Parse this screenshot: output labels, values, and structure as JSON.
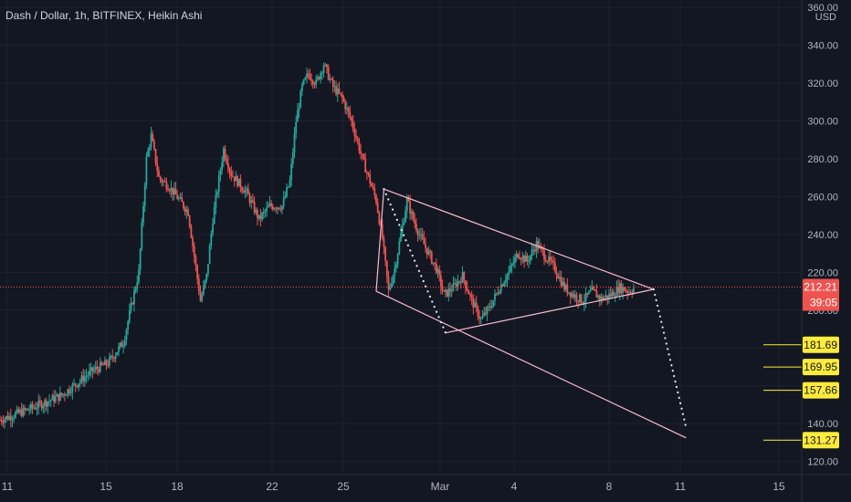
{
  "header": {
    "title": "Dash / Dollar, 1h, BITFINEX, Heikin Ashi"
  },
  "currency_label": "USD",
  "colors": {
    "background": "#131722",
    "grid": "#1e222d",
    "text": "#b2b5be",
    "up": "#26a69a",
    "down": "#ef5350",
    "pattern_line": "#f8bbd0",
    "projection": "#e0e3eb",
    "target_line": "#ffeb3b",
    "target_label_bg": "#ffeb3b",
    "price_label_bg": "#ef5350"
  },
  "chart_data": {
    "type": "candlestick",
    "title": "Dash / Dollar, 1h, BITFINEX, Heikin Ashi",
    "y_ticks": [
      "120.00",
      "140.00",
      "160.00",
      "180.00",
      "200.00",
      "220.00",
      "240.00",
      "260.00",
      "280.00",
      "300.00",
      "320.00",
      "340.00",
      "360.00"
    ],
    "x_ticks": [
      "11",
      "15",
      "18",
      "22",
      "25",
      "Mar",
      "4",
      "8",
      "11",
      "15"
    ],
    "ylim": [
      115,
      362
    ],
    "current_price": "212.21",
    "countdown": "39:05",
    "reference_price": "210.64",
    "targets": [
      "181.69",
      "169.95",
      "157.66",
      "131.27"
    ],
    "price_path": [
      [
        0,
        142
      ],
      [
        2,
        148
      ],
      [
        4,
        155
      ],
      [
        6,
        168
      ],
      [
        7,
        172
      ],
      [
        8,
        183
      ],
      [
        9,
        220
      ],
      [
        9.5,
        280
      ],
      [
        9.8,
        292
      ],
      [
        10.3,
        270
      ],
      [
        11,
        265
      ],
      [
        12.2,
        252
      ],
      [
        13,
        205
      ],
      [
        13.4,
        218
      ],
      [
        13.8,
        248
      ],
      [
        14.5,
        285
      ],
      [
        15,
        272
      ],
      [
        16,
        262
      ],
      [
        16.8,
        248
      ],
      [
        17.5,
        255
      ],
      [
        18.3,
        255
      ],
      [
        18.8,
        268
      ],
      [
        19.2,
        300
      ],
      [
        19.6,
        318
      ],
      [
        20,
        325
      ],
      [
        20.5,
        320
      ],
      [
        21,
        330
      ],
      [
        21.6,
        318
      ],
      [
        22.2,
        312
      ],
      [
        22.8,
        300
      ],
      [
        23.5,
        280
      ],
      [
        24,
        268
      ],
      [
        24.4,
        258
      ],
      [
        24.8,
        238
      ],
      [
        25.2,
        210
      ],
      [
        25.6,
        222
      ],
      [
        26,
        240
      ],
      [
        26.4,
        258
      ],
      [
        26.8,
        248
      ],
      [
        27.3,
        238
      ],
      [
        27.8,
        230
      ],
      [
        28.3,
        222
      ],
      [
        28.8,
        208
      ],
      [
        29.4,
        212
      ],
      [
        30,
        218
      ],
      [
        30.6,
        205
      ],
      [
        31.2,
        195
      ],
      [
        31.8,
        202
      ],
      [
        32.4,
        212
      ],
      [
        33,
        220
      ],
      [
        33.6,
        230
      ],
      [
        34.2,
        226
      ],
      [
        34.8,
        235
      ],
      [
        35.4,
        228
      ],
      [
        36,
        222
      ],
      [
        36.6,
        212
      ],
      [
        37.2,
        208
      ],
      [
        37.8,
        205
      ],
      [
        38.4,
        210
      ],
      [
        39,
        206
      ],
      [
        39.6,
        208
      ],
      [
        40.2,
        212
      ],
      [
        40.8,
        210
      ],
      [
        41.2,
        212
      ]
    ],
    "upper_line": [
      [
        24.9,
        264
      ],
      [
        42.4,
        211
      ]
    ],
    "lower_line": [
      [
        24.4,
        210
      ],
      [
        44.5,
        132.5
      ]
    ],
    "triangle_lower": [
      [
        28.9,
        188
      ],
      [
        42.4,
        211
      ]
    ],
    "dotted_lines": [
      {
        "from": [
          24.9,
          264
        ],
        "to": [
          28.9,
          188
        ]
      },
      {
        "from": [
          42.4,
          211
        ],
        "to": [
          44.5,
          138
        ]
      }
    ],
    "grid": true
  }
}
